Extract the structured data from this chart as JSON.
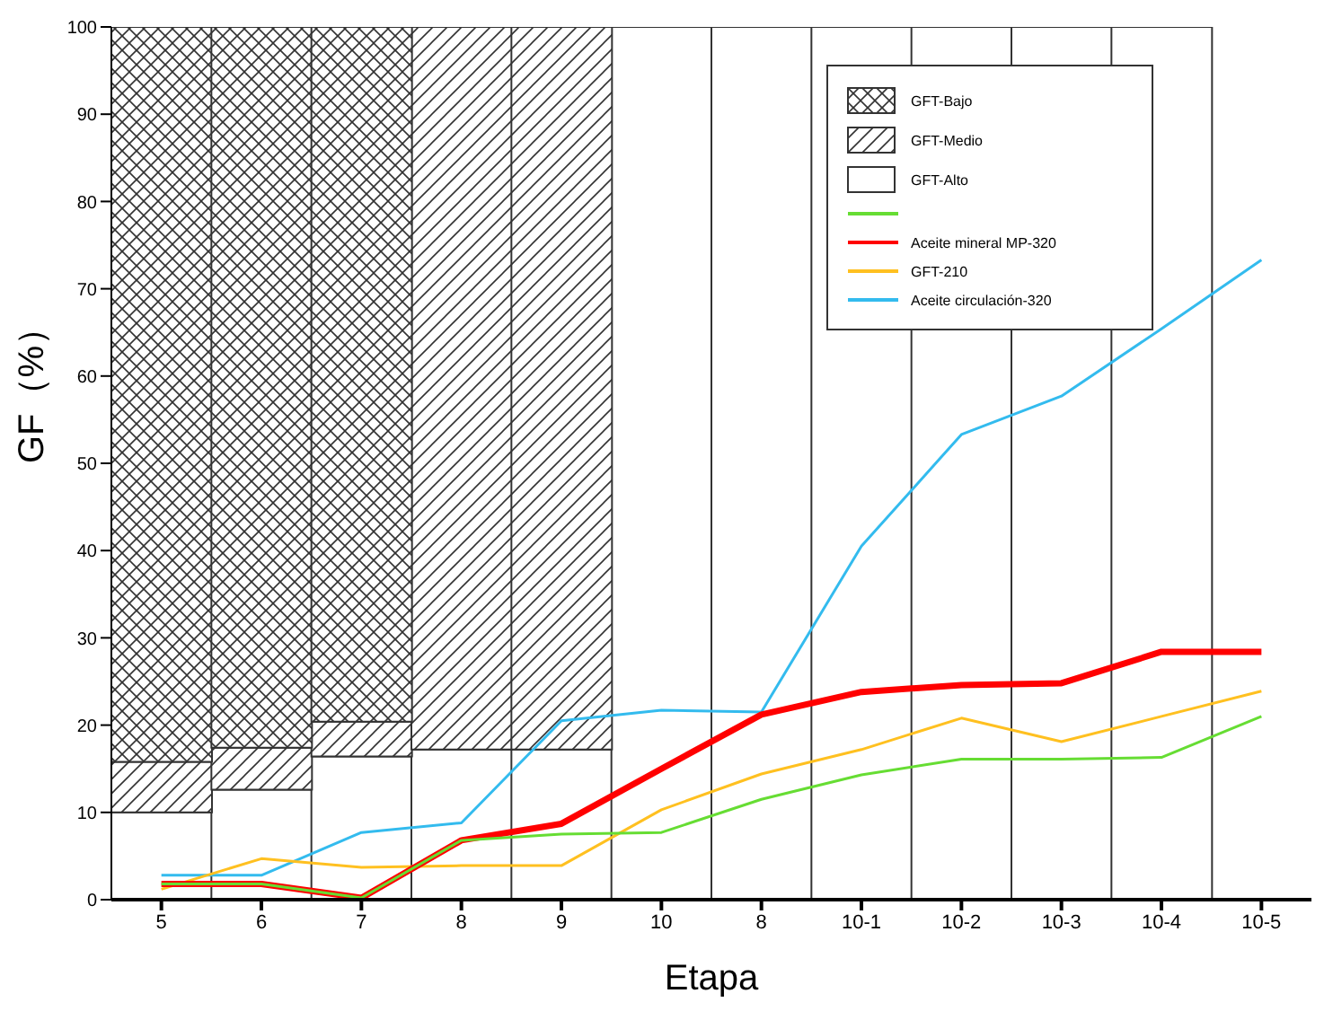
{
  "chart_data": {
    "type": "bar",
    "stacked": true,
    "xlabel": "Etapa",
    "ylabel": "GF（%）",
    "categories": [
      "5",
      "6",
      "7",
      "8",
      "9",
      "10",
      "8",
      "10-1",
      "10-2",
      "10-3",
      "10-4",
      "10-5"
    ],
    "ylim": [
      0,
      100
    ],
    "yticks": [
      0,
      10,
      20,
      30,
      40,
      50,
      60,
      70,
      80,
      90,
      100
    ],
    "legend": "top right",
    "series": [
      {
        "name": "GFT-Alto",
        "color": "#ffffff",
        "values": [
          10,
          12.6,
          16.4,
          17.2,
          17.2,
          100,
          100,
          100,
          100,
          100,
          100,
          null
        ]
      },
      {
        "name": "GFT-Medio",
        "color": "#333333",
        "values": [
          5.8,
          4.8,
          4.0,
          82.8,
          82.8,
          null,
          null,
          null,
          null,
          null,
          null,
          null
        ]
      },
      {
        "name": "GFT-Bajo",
        "color": "#333333",
        "values": [
          84.2,
          82.6,
          79.6,
          null,
          null,
          null,
          null,
          null,
          null,
          null,
          null,
          null
        ]
      },
      {
        "type": "line",
        "color": "#66dd33",
        "values": [
          1.8,
          1.8,
          0.2,
          6.8,
          7.5,
          7.7,
          11.5,
          14.3,
          16.1,
          16.1,
          16.3,
          21
        ]
      },
      {
        "type": "line",
        "name": "Aceite mineral MP-320",
        "color": "#ff0000",
        "values": [
          1.8,
          1.8,
          0.2,
          6.8,
          8.7,
          15,
          21.2,
          23.8,
          24.6,
          24.8,
          28.4,
          28.4
        ]
      },
      {
        "type": "line",
        "name": "GFT-210",
        "color": "#ffc020",
        "values": [
          1.2,
          4.7,
          3.7,
          3.9,
          3.9,
          10.3,
          14.4,
          17.2,
          20.8,
          18.1,
          21,
          23.9
        ]
      },
      {
        "type": "line",
        "name": "Aceite circulación-320",
        "color": "#33bbee",
        "values": [
          2.8,
          2.8,
          7.7,
          8.8,
          20.5,
          21.7,
          21.5,
          40.5,
          53.3,
          57.7,
          65.4,
          73.3
        ]
      }
    ]
  }
}
